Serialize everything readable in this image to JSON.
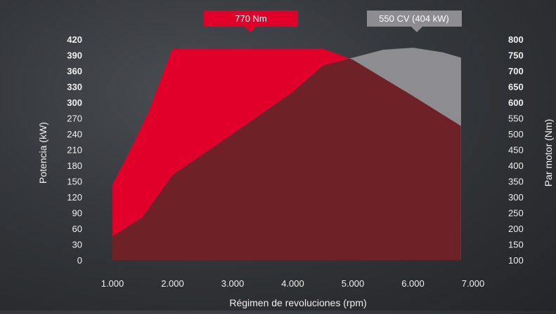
{
  "colors": {
    "torque": "#e0002a",
    "power": "#8c8c91",
    "overlap": "#6e2127",
    "torque_badge": "#e0002a",
    "power_badge": "#8c8c91"
  },
  "annotations": {
    "torque_peak": "770 Nm",
    "power_peak": "550 CV (404 kW)"
  },
  "chart_data": {
    "type": "area",
    "xlabel": "Régimen de revoluciones (rpm)",
    "ylabel_left": "Potencia (kW)",
    "ylabel_right": "Par motor (Nm)",
    "x_ticks": [
      "1.000",
      "2.000",
      "3.000",
      "4.000",
      "5.000",
      "6.000",
      "7.000"
    ],
    "y_left_ticks": [
      {
        "label": "0",
        "bold": false
      },
      {
        "label": "30",
        "bold": false
      },
      {
        "label": "60",
        "bold": false
      },
      {
        "label": "90",
        "bold": false
      },
      {
        "label": "120",
        "bold": false
      },
      {
        "label": "150",
        "bold": false
      },
      {
        "label": "180",
        "bold": false
      },
      {
        "label": "210",
        "bold": false
      },
      {
        "label": "240",
        "bold": false
      },
      {
        "label": "270",
        "bold": false
      },
      {
        "label": "300",
        "bold": true
      },
      {
        "label": "330",
        "bold": true
      },
      {
        "label": "360",
        "bold": true
      },
      {
        "label": "390",
        "bold": true
      },
      {
        "label": "420",
        "bold": true
      }
    ],
    "y_right_ticks": [
      {
        "label": "100",
        "bold": false
      },
      {
        "label": "150",
        "bold": false
      },
      {
        "label": "200",
        "bold": false
      },
      {
        "label": "250",
        "bold": false
      },
      {
        "label": "300",
        "bold": false
      },
      {
        "label": "350",
        "bold": false
      },
      {
        "label": "400",
        "bold": false
      },
      {
        "label": "450",
        "bold": false
      },
      {
        "label": "500",
        "bold": false
      },
      {
        "label": "550",
        "bold": false
      },
      {
        "label": "600",
        "bold": true
      },
      {
        "label": "650",
        "bold": true
      },
      {
        "label": "700",
        "bold": true
      },
      {
        "label": "750",
        "bold": true
      },
      {
        "label": "800",
        "bold": true
      }
    ],
    "xlim": [
      1000,
      7000
    ],
    "ylim_left": [
      0,
      420
    ],
    "ylim_right": [
      100,
      800
    ],
    "series": [
      {
        "axis": "right",
        "x": [
          1000,
          1300,
          1600,
          2000,
          3000,
          4000,
          4500,
          5000,
          6000,
          6800
        ],
        "y": [
          340,
          450,
          570,
          770,
          770,
          770,
          770,
          735,
          620,
          525
        ]
      },
      {
        "axis": "left",
        "x": [
          1000,
          1500,
          2000,
          3000,
          4000,
          4500,
          5000,
          5500,
          6000,
          6500,
          6800
        ],
        "y": [
          45,
          82,
          162,
          240,
          320,
          370,
          385,
          400,
          404,
          395,
          385
        ]
      }
    ]
  }
}
